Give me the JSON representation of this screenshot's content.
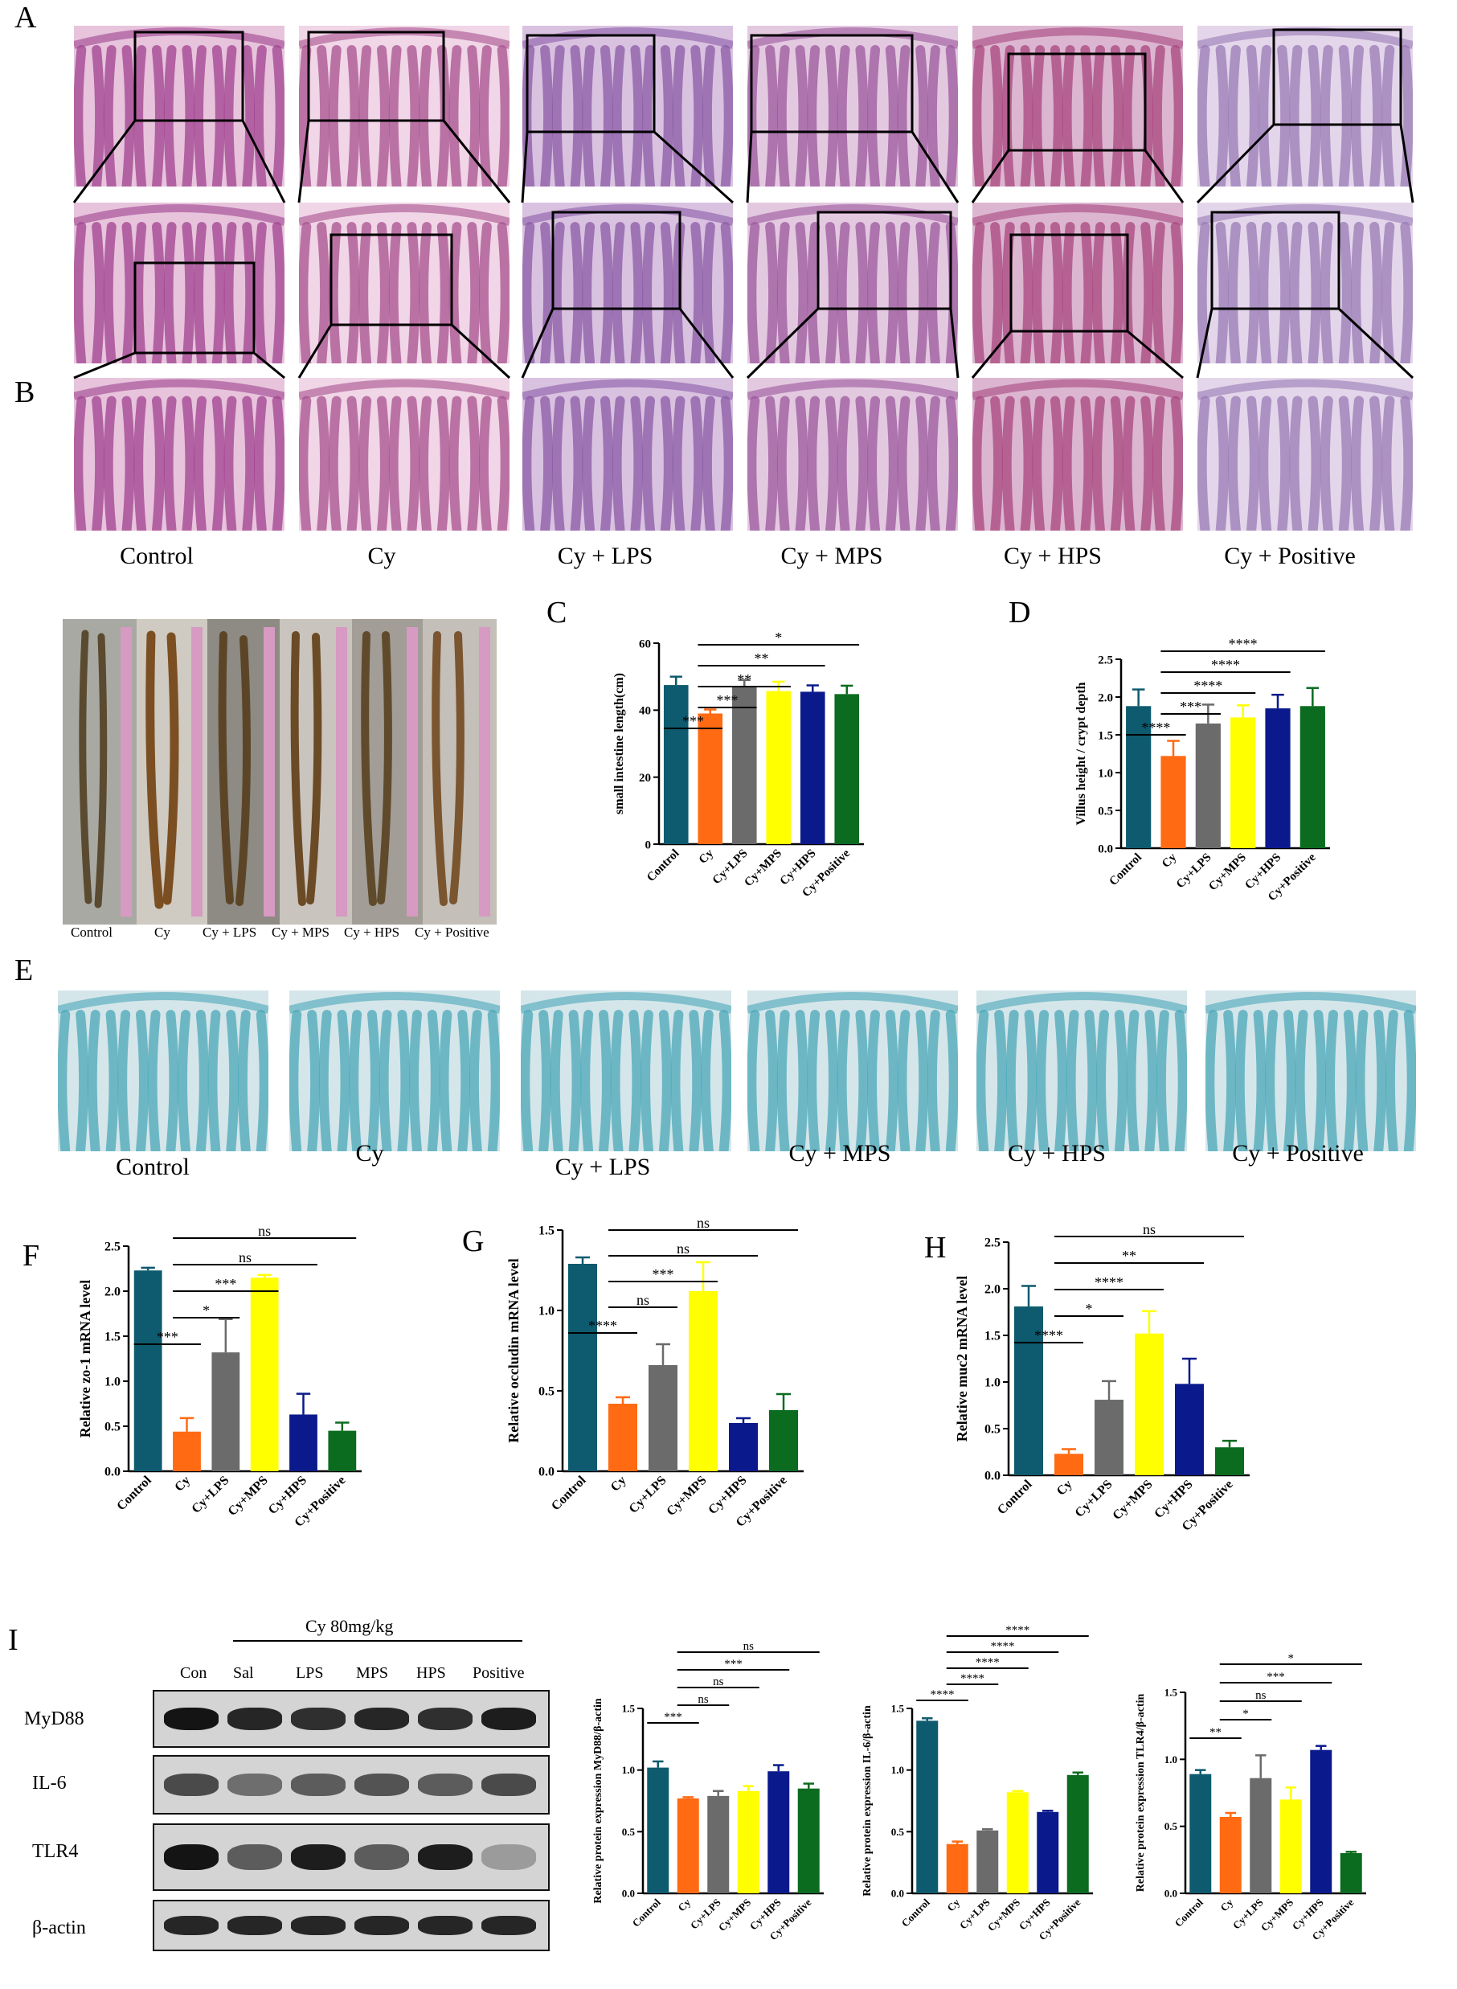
{
  "panels": {
    "A": "A",
    "B": "B",
    "C": "C",
    "D": "D",
    "E": "E",
    "F": "F",
    "G": "G",
    "H": "H",
    "I": "I"
  },
  "colors": [
    "#0e5a6e",
    "#ff6a13",
    "#6b6b6b",
    "#ffff00",
    "#0a1a8c",
    "#0b6b1f"
  ],
  "panel_a": {
    "groups": [
      "Control",
      "Cy",
      "Cy + LPS",
      "Cy + MPS",
      "Cy + HPS",
      "Cy + Positive"
    ]
  },
  "panel_b": {
    "labels": [
      "Control",
      "Cy",
      "Cy + LPS",
      "Cy + MPS",
      "Cy + HPS",
      "Cy + Positive"
    ]
  },
  "panel_e": {
    "groups": [
      "Control",
      "Cy",
      "Cy + LPS",
      "Cy + MPS",
      "Cy + HPS",
      "Cy + Positive"
    ]
  },
  "panel_i": {
    "header": "Cy 80mg/kg",
    "lanes": [
      "Con",
      "Sal",
      "LPS",
      "MPS",
      "HPS",
      "Positive"
    ],
    "proteins": [
      "MyD88",
      "IL-6",
      "TLR4",
      "β-actin"
    ]
  },
  "chart_data": [
    {
      "id": "C",
      "type": "bar",
      "categories": [
        "Control",
        "Cy",
        "Cy+LPS",
        "Cy+MPS",
        "Cy+HPS",
        "Cy+Positive"
      ],
      "values": [
        47.5,
        39,
        47,
        45.7,
        45.5,
        44.8
      ],
      "errors": [
        2.5,
        1.2,
        2,
        2.8,
        1.9,
        2.5
      ],
      "ylabel": "small intestine length(cm)",
      "ylim": [
        0,
        60
      ],
      "yticks": [
        0,
        20,
        40,
        60
      ],
      "yticklabels": [
        "0",
        "20",
        "40",
        "60"
      ],
      "sig": [
        {
          "a": 0,
          "b": 1,
          "label": "***"
        },
        {
          "a": 1,
          "b": 2,
          "label": "***"
        },
        {
          "a": 1,
          "b": 3,
          "label": "**"
        },
        {
          "a": 1,
          "b": 4,
          "label": "**"
        },
        {
          "a": 1,
          "b": 5,
          "label": "*"
        }
      ]
    },
    {
      "id": "D",
      "type": "bar",
      "categories": [
        "Control",
        "Cy",
        "Cy+LPS",
        "Cy+MPS",
        "Cy+HPS",
        "Cy+Positive"
      ],
      "values": [
        1.88,
        1.22,
        1.65,
        1.73,
        1.85,
        1.88
      ],
      "errors": [
        0.22,
        0.2,
        0.25,
        0.16,
        0.18,
        0.24
      ],
      "ylabel": "Villus height / crypt depth",
      "ylim": [
        0,
        2.5
      ],
      "yticks": [
        0,
        0.5,
        1,
        1.5,
        2,
        2.5
      ],
      "yticklabels": [
        "0.0",
        "0.5",
        "1.0",
        "1.5",
        "2.0",
        "2.5"
      ],
      "sig": [
        {
          "a": 0,
          "b": 1,
          "label": "****"
        },
        {
          "a": 1,
          "b": 2,
          "label": "***"
        },
        {
          "a": 1,
          "b": 3,
          "label": "****"
        },
        {
          "a": 1,
          "b": 4,
          "label": "****"
        },
        {
          "a": 1,
          "b": 5,
          "label": "****"
        }
      ]
    },
    {
      "id": "F",
      "type": "bar",
      "categories": [
        "Control",
        "Cy",
        "Cy+LPS",
        "Cy+MPS",
        "Cy+HPS",
        "Cy+Positive"
      ],
      "values": [
        2.23,
        0.44,
        1.32,
        2.15,
        0.63,
        0.45
      ],
      "errors": [
        0.03,
        0.15,
        0.37,
        0.03,
        0.23,
        0.09
      ],
      "ylabel": "Relative zo-1 mRNA level",
      "ylim": [
        0,
        2.5
      ],
      "yticks": [
        0,
        0.5,
        1,
        1.5,
        2,
        2.5
      ],
      "yticklabels": [
        "0.0",
        "0.5",
        "1.0",
        "1.5",
        "2.0",
        "2.5"
      ],
      "sig": [
        {
          "a": 0,
          "b": 1,
          "label": "***"
        },
        {
          "a": 1,
          "b": 2,
          "label": "*"
        },
        {
          "a": 1,
          "b": 3,
          "label": "***"
        },
        {
          "a": 1,
          "b": 4,
          "label": "ns"
        },
        {
          "a": 1,
          "b": 5,
          "label": "ns"
        }
      ]
    },
    {
      "id": "G",
      "type": "bar",
      "categories": [
        "Control",
        "Cy",
        "Cy+LPS",
        "Cy+MPS",
        "Cy+HPS",
        "Cy+Positive"
      ],
      "values": [
        1.29,
        0.42,
        0.66,
        1.12,
        0.3,
        0.38
      ],
      "errors": [
        0.04,
        0.04,
        0.13,
        0.18,
        0.03,
        0.1
      ],
      "ylabel": "Relative occludin mRNA level",
      "ylim": [
        0,
        1.5
      ],
      "yticks": [
        0,
        0.5,
        1,
        1.5
      ],
      "yticklabels": [
        "0.0",
        "0.5",
        "1.0",
        "1.5"
      ],
      "sig": [
        {
          "a": 0,
          "b": 1,
          "label": "****"
        },
        {
          "a": 1,
          "b": 2,
          "label": "ns"
        },
        {
          "a": 1,
          "b": 3,
          "label": "***"
        },
        {
          "a": 1,
          "b": 4,
          "label": "ns"
        },
        {
          "a": 1,
          "b": 5,
          "label": "ns"
        }
      ]
    },
    {
      "id": "H",
      "type": "bar",
      "categories": [
        "Control",
        "Cy",
        "Cy+LPS",
        "Cy+MPS",
        "Cy+HPS",
        "Cy+Positive"
      ],
      "values": [
        1.81,
        0.23,
        0.81,
        1.52,
        0.98,
        0.3
      ],
      "errors": [
        0.22,
        0.05,
        0.2,
        0.24,
        0.27,
        0.07
      ],
      "ylabel": "Relative muc2 mRNA level",
      "ylim": [
        0,
        2.5
      ],
      "yticks": [
        0,
        0.5,
        1,
        1.5,
        2,
        2.5
      ],
      "yticklabels": [
        "0.0",
        "0.5",
        "1.0",
        "1.5",
        "2.0",
        "2.5"
      ],
      "sig": [
        {
          "a": 0,
          "b": 1,
          "label": "****"
        },
        {
          "a": 1,
          "b": 2,
          "label": "*"
        },
        {
          "a": 1,
          "b": 3,
          "label": "****"
        },
        {
          "a": 1,
          "b": 4,
          "label": "**"
        },
        {
          "a": 1,
          "b": 5,
          "label": "ns"
        }
      ]
    },
    {
      "id": "I1",
      "type": "bar",
      "categories": [
        "Control",
        "Cy",
        "Cy+LPS",
        "Cy+MPS",
        "Cy+HPS",
        "Cy+Positive"
      ],
      "values": [
        1.02,
        0.77,
        0.79,
        0.83,
        0.99,
        0.85
      ],
      "errors": [
        0.05,
        0.01,
        0.04,
        0.04,
        0.05,
        0.04
      ],
      "ylabel": "Relative protein expression MyD88/β-actin",
      "ylim": [
        0,
        1.5
      ],
      "yticks": [
        0,
        0.5,
        1,
        1.5
      ],
      "yticklabels": [
        "0.0",
        "0.5",
        "1.0",
        "1.5"
      ],
      "sig": [
        {
          "a": 0,
          "b": 1,
          "label": "***"
        },
        {
          "a": 1,
          "b": 2,
          "label": "ns"
        },
        {
          "a": 1,
          "b": 3,
          "label": "ns"
        },
        {
          "a": 1,
          "b": 4,
          "label": "***"
        },
        {
          "a": 1,
          "b": 5,
          "label": "ns"
        }
      ]
    },
    {
      "id": "I2",
      "type": "bar",
      "categories": [
        "Control",
        "Cy",
        "Cy+LPS",
        "Cy+MPS",
        "Cy+HPS",
        "Cy+Positive"
      ],
      "values": [
        1.4,
        0.4,
        0.51,
        0.82,
        0.66,
        0.96
      ],
      "errors": [
        0.02,
        0.02,
        0.01,
        0.01,
        0.01,
        0.02
      ],
      "ylabel": "Relative protein expression IL-6/β-actin",
      "ylim": [
        0,
        1.5
      ],
      "yticks": [
        0,
        0.5,
        1,
        1.5
      ],
      "yticklabels": [
        "0.0",
        "0.5",
        "1.0",
        "1.5"
      ],
      "sig": [
        {
          "a": 0,
          "b": 1,
          "label": "****"
        },
        {
          "a": 1,
          "b": 2,
          "label": "****"
        },
        {
          "a": 1,
          "b": 3,
          "label": "****"
        },
        {
          "a": 1,
          "b": 4,
          "label": "****"
        },
        {
          "a": 1,
          "b": 5,
          "label": "****"
        }
      ]
    },
    {
      "id": "I3",
      "type": "bar",
      "categories": [
        "Control",
        "Cy",
        "Cy+LPS",
        "Cy+MPS",
        "Cy+HPS",
        "Cy+Positive"
      ],
      "values": [
        0.89,
        0.57,
        0.86,
        0.7,
        1.07,
        0.3
      ],
      "errors": [
        0.03,
        0.03,
        0.17,
        0.09,
        0.03,
        0.01
      ],
      "ylabel": "Relative protein expression TLR4/β-actin",
      "ylim": [
        0,
        1.5
      ],
      "yticks": [
        0,
        0.5,
        1,
        1.5
      ],
      "yticklabels": [
        "0.0",
        "0.5",
        "1.0",
        "1.5"
      ],
      "sig": [
        {
          "a": 0,
          "b": 1,
          "label": "**"
        },
        {
          "a": 1,
          "b": 2,
          "label": "*"
        },
        {
          "a": 1,
          "b": 3,
          "label": "ns"
        },
        {
          "a": 1,
          "b": 4,
          "label": "***"
        },
        {
          "a": 1,
          "b": 5,
          "label": "*"
        }
      ]
    }
  ]
}
